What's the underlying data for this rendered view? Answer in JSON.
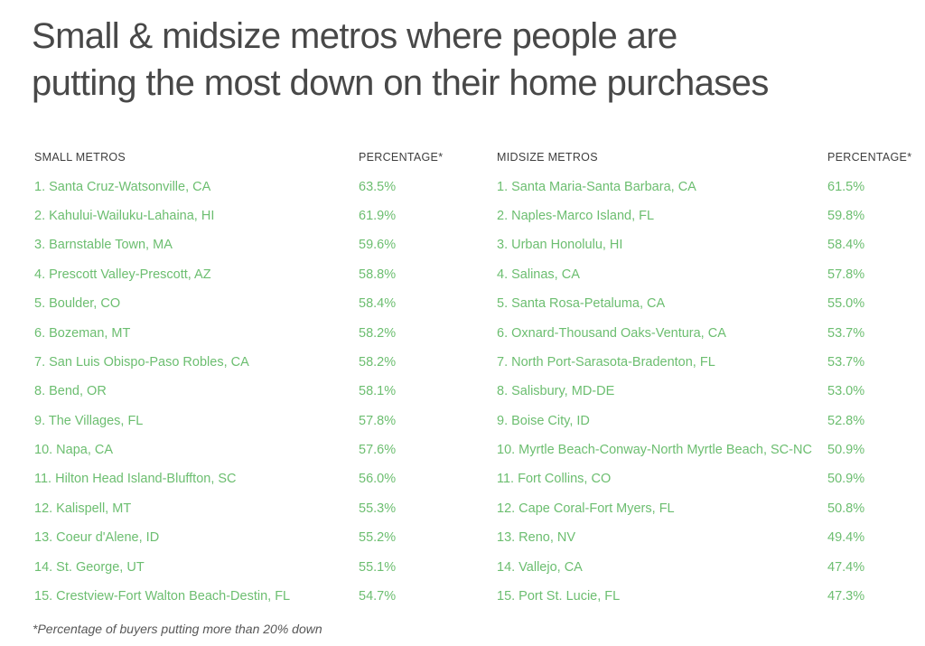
{
  "title": {
    "line1": "Small & midsize metros where people are",
    "line2": "putting the most down on their home purchases"
  },
  "footnote": "*Percentage of buyers putting more than 20% down",
  "colors": {
    "metro_green": "#6cbe70",
    "title_gray": "#484848",
    "header_gray": "#3e3e3e",
    "footnote_gray": "#575757"
  },
  "chart_data": {
    "type": "table",
    "title": "Small & midsize metros where people are putting the most down on their home purchases",
    "footnote": "*Percentage of buyers putting more than 20% down",
    "tables": [
      {
        "headers": [
          "SMALL METROS",
          "PERCENTAGE*"
        ],
        "rows": [
          {
            "metro": "1. Santa Cruz-Watsonville, CA",
            "percentage": "63.5%"
          },
          {
            "metro": "2. Kahului-Wailuku-Lahaina, HI",
            "percentage": "61.9%"
          },
          {
            "metro": "3. Barnstable Town, MA",
            "percentage": "59.6%"
          },
          {
            "metro": "4. Prescott Valley-Prescott, AZ",
            "percentage": "58.8%"
          },
          {
            "metro": "5. Boulder, CO",
            "percentage": "58.4%"
          },
          {
            "metro": "6. Bozeman, MT",
            "percentage": "58.2%"
          },
          {
            "metro": "7. San Luis Obispo-Paso Robles, CA",
            "percentage": "58.2%"
          },
          {
            "metro": "8. Bend, OR",
            "percentage": "58.1%"
          },
          {
            "metro": "9. The Villages, FL",
            "percentage": "57.8%"
          },
          {
            "metro": "10. Napa, CA",
            "percentage": "57.6%"
          },
          {
            "metro": "11. Hilton Head Island-Bluffton, SC",
            "percentage": "56.0%"
          },
          {
            "metro": "12. Kalispell, MT",
            "percentage": "55.3%"
          },
          {
            "metro": "13. Coeur d'Alene, ID",
            "percentage": "55.2%"
          },
          {
            "metro": "14. St. George, UT",
            "percentage": "55.1%"
          },
          {
            "metro": "15. Crestview-Fort Walton Beach-Destin, FL",
            "percentage": "54.7%"
          }
        ]
      },
      {
        "headers": [
          "MIDSIZE METROS",
          "PERCENTAGE*"
        ],
        "rows": [
          {
            "metro": "1. Santa Maria-Santa Barbara, CA",
            "percentage": "61.5%"
          },
          {
            "metro": "2. Naples-Marco Island, FL",
            "percentage": "59.8%"
          },
          {
            "metro": "3. Urban Honolulu, HI",
            "percentage": "58.4%"
          },
          {
            "metro": "4. Salinas, CA",
            "percentage": "57.8%"
          },
          {
            "metro": "5. Santa Rosa-Petaluma, CA",
            "percentage": "55.0%"
          },
          {
            "metro": "6. Oxnard-Thousand Oaks-Ventura, CA",
            "percentage": "53.7%"
          },
          {
            "metro": "7. North Port-Sarasota-Bradenton, FL",
            "percentage": "53.7%"
          },
          {
            "metro": "8. Salisbury, MD-DE",
            "percentage": "53.0%"
          },
          {
            "metro": "9. Boise City, ID",
            "percentage": "52.8%"
          },
          {
            "metro": "10. Myrtle Beach-Conway-North Myrtle Beach, SC-NC",
            "percentage": "50.9%"
          },
          {
            "metro": "11. Fort Collins, CO",
            "percentage": "50.9%"
          },
          {
            "metro": "12. Cape Coral-Fort Myers, FL",
            "percentage": "50.8%"
          },
          {
            "metro": "13. Reno, NV",
            "percentage": "49.4%"
          },
          {
            "metro": "14. Vallejo, CA",
            "percentage": "47.4%"
          },
          {
            "metro": "15. Port St. Lucie, FL",
            "percentage": "47.3%"
          }
        ]
      }
    ]
  }
}
